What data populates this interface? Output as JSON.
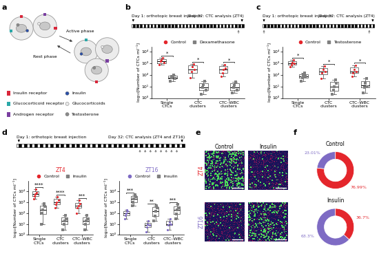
{
  "chart_data": [
    {
      "type": "diagram",
      "panel": "a",
      "phases": [
        "Active phase",
        "Rest phase"
      ],
      "legend_items": [
        {
          "name": "Insulin receptor",
          "color": "#d9263a",
          "marker": "square"
        },
        {
          "name": "Glucocorticoid receptor",
          "color": "#2aa8a8",
          "marker": "square"
        },
        {
          "name": "Androgen receptor",
          "color": "#7a3fa0",
          "marker": "square"
        },
        {
          "name": "Insulin",
          "color": "#2a4fa8",
          "marker": "circle"
        },
        {
          "name": "Glucocorticoids",
          "color": "#e8e8e8",
          "marker": "circle"
        },
        {
          "name": "Testosterone",
          "color": "#8a8a8a",
          "marker": "circle"
        }
      ]
    },
    {
      "type": "box",
      "panel": "b",
      "timeline": {
        "days": 32,
        "start": "Day 1: orthotopic breast injection",
        "end": "Day 32: CTC analysis (ZT4)",
        "treatment_days": [
          31
        ]
      },
      "categories": [
        "Single CTCs",
        "CTC clusters",
        "CTC–WBC clusters"
      ],
      "y_label": "log₁₀[Number of CTCs ml⁻¹]",
      "log": "y",
      "ylim": [
        1,
        30000
      ],
      "yticks": [
        {
          "value": 1,
          "label": "10⁰"
        },
        {
          "value": 10,
          "label": "10¹"
        },
        {
          "value": 100,
          "label": "10²"
        },
        {
          "value": 1000,
          "label": "10³"
        },
        {
          "value": 10000,
          "label": "10⁴"
        }
      ],
      "legend": "lower center",
      "series": [
        {
          "name": "Control",
          "color": "#e4262c",
          "marker": "circle",
          "boxes": [
            [
              800,
              1000,
              1500,
              2500,
              3000
            ],
            [
              60,
              150,
              300,
              700,
              900
            ],
            [
              80,
              150,
              300,
              600,
              800
            ]
          ],
          "points": [
            [
              800,
              1500,
              2000,
              3000,
              1200
            ],
            [
              60,
              200,
              500,
              900,
              300
            ],
            [
              80,
              150,
              300,
              800,
              400
            ]
          ]
        },
        {
          "name": "Dexamethasone",
          "color": "#7f7f7f",
          "marker": "square",
          "boxes": [
            [
              30,
              50,
              60,
              90,
              100
            ],
            [
              2,
              5,
              8,
              20,
              30
            ],
            [
              3,
              5,
              8,
              18,
              25
            ]
          ],
          "points": [
            [
              30,
              60,
              80,
              100,
              50
            ],
            [
              2,
              8,
              15,
              30,
              5
            ],
            [
              3,
              8,
              12,
              25,
              5
            ]
          ]
        }
      ],
      "significance": [
        "*",
        "*",
        "*"
      ]
    },
    {
      "type": "box",
      "panel": "c",
      "timeline": {
        "days": 32,
        "start": "Day 1: orthotopic breast injection",
        "end": "Day 32: CTC analysis (ZT4)",
        "treatment_days": [
          1,
          31
        ]
      },
      "categories": [
        "Single CTCs",
        "CTC clusters",
        "CTC–WBC clusters"
      ],
      "y_label": "log₁₀[Number of CTCs ml⁻¹]",
      "log": "y",
      "ylim": [
        1,
        30000
      ],
      "yticks": [
        {
          "value": 1,
          "label": "10⁰"
        },
        {
          "value": 10,
          "label": "10¹"
        },
        {
          "value": 100,
          "label": "10²"
        },
        {
          "value": 1000,
          "label": "10³"
        },
        {
          "value": 10000,
          "label": "10⁴"
        }
      ],
      "legend": "lower center",
      "series": [
        {
          "name": "Control",
          "color": "#e4262c",
          "marker": "circle",
          "boxes": [
            [
              500,
              800,
              1000,
              1500,
              2000
            ],
            [
              50,
              120,
              200,
              400,
              600
            ],
            [
              80,
              150,
              200,
              450,
              700
            ]
          ],
          "points": [
            [
              500,
              800,
              1200,
              2000,
              1000
            ],
            [
              50,
              150,
              300,
              600,
              200
            ],
            [
              80,
              150,
              300,
              700,
              200
            ]
          ]
        },
        {
          "name": "Testosterone",
          "color": "#7f7f7f",
          "marker": "square",
          "boxes": [
            [
              30,
              60,
              80,
              120,
              150
            ],
            [
              2,
              4,
              10,
              25,
              40
            ],
            [
              3,
              8,
              12,
              30,
              50
            ]
          ],
          "points": [
            [
              30,
              60,
              100,
              150,
              80
            ],
            [
              2,
              5,
              10,
              40,
              20
            ],
            [
              3,
              8,
              20,
              50,
              10
            ]
          ]
        }
      ],
      "significance": [
        "*",
        "*",
        "*"
      ]
    },
    {
      "type": "box",
      "panel": "d",
      "timeline": {
        "days": 32,
        "start": "Day 1: orthotopic breast injection",
        "end": "Day 32: CTC analysis (ZT4 and ZT16)",
        "treatment_days": [
          24,
          25,
          26,
          27,
          28,
          29,
          30,
          31
        ]
      },
      "charts": [
        {
          "title": "ZT4",
          "color": "#e4262c",
          "categories": [
            "Single CTCs",
            "CTC clusters",
            "CTC–WBC clusters"
          ],
          "y_label": "log₁₀[Number of CTCs ml⁻¹]",
          "log": "y",
          "ylim": [
            1,
            100000
          ],
          "yticks": [
            {
              "value": 1,
              "label": "10⁰"
            },
            {
              "value": 10,
              "label": "10¹"
            },
            {
              "value": 100,
              "label": "10²"
            },
            {
              "value": 1000,
              "label": "10³"
            },
            {
              "value": 10000,
              "label": "10⁴"
            }
          ],
          "legend": "lower center",
          "series": [
            {
              "name": "Control",
              "color": "#e4262c",
              "marker": "circle",
              "boxes": [
                [
                  2000,
                  4000,
                  6000,
                  10000,
                  15000
                ],
                [
                  300,
                  600,
                  1000,
                  2000,
                  3000
                ],
                [
                  100,
                  300,
                  500,
                  900,
                  1500
                ]
              ],
              "points": [
                [
                  2000,
                  4000,
                  6000,
                  15000,
                  8000
                ],
                [
                  300,
                  600,
                  1000,
                  3000,
                  1500
                ],
                [
                  100,
                  300,
                  500,
                  1500,
                  800
                ]
              ]
            },
            {
              "name": "Insulin",
              "color": "#7f7f7f",
              "marker": "square",
              "boxes": [
                [
                  10,
                  80,
                  200,
                  500,
                  800
                ],
                [
                  3,
                  10,
                  20,
                  40,
                  60
                ],
                [
                  3,
                  10,
                  20,
                  40,
                  60
                ]
              ],
              "points": [
                [
                  10,
                  100,
                  200,
                  800,
                  400
                ],
                [
                  3,
                  10,
                  20,
                  60,
                  30
                ],
                [
                  3,
                  10,
                  20,
                  60,
                  30
                ]
              ]
            }
          ],
          "significance": [
            "****",
            "****",
            "***"
          ]
        },
        {
          "title": "ZT16",
          "color": "#7e6bc4",
          "categories": [
            "Single CTCs",
            "CTC clusters",
            "CTC–WBC clusters"
          ],
          "y_label": "log₁₀[Number of CTCs ml⁻¹]",
          "log": "y",
          "ylim": [
            1,
            100000
          ],
          "yticks": [
            {
              "value": 1,
              "label": "10⁰"
            },
            {
              "value": 10,
              "label": "10¹"
            },
            {
              "value": 100,
              "label": "10²"
            },
            {
              "value": 1000,
              "label": "10³"
            },
            {
              "value": 10000,
              "label": "10⁴"
            }
          ],
          "legend": "lower center",
          "series": [
            {
              "name": "Control",
              "color": "#7e6bc4",
              "marker": "circle",
              "boxes": [
                [
                  30,
                  60,
                  100,
                  150,
                  200
                ],
                [
                  2,
                  5,
                  8,
                  12,
                  20
                ],
                [
                  3,
                  8,
                  10,
                  20,
                  30
                ]
              ],
              "points": [
                [
                  30,
                  60,
                  100,
                  200,
                  150
                ],
                [
                  2,
                  5,
                  10,
                  20,
                  8
                ],
                [
                  3,
                  8,
                  15,
                  30,
                  10
                ]
              ]
            },
            {
              "name": "Insulin",
              "color": "#7f7f7f",
              "marker": "square",
              "boxes": [
                [
                  500,
                  1000,
                  2000,
                  3500,
                  5000
                ],
                [
                  20,
                  50,
                  150,
                  350,
                  500
                ],
                [
                  30,
                  80,
                  200,
                  400,
                  600
                ]
              ],
              "points": [
                [
                  500,
                  1000,
                  2000,
                  5000,
                  3000
                ],
                [
                  20,
                  50,
                  150,
                  500,
                  300
                ],
                [
                  30,
                  80,
                  200,
                  600,
                  300
                ]
              ]
            }
          ],
          "significance": [
            "***",
            "**",
            "***"
          ]
        }
      ]
    },
    {
      "type": "image",
      "panel": "e",
      "columns": [
        "Control",
        "Insulin"
      ],
      "rows": [
        {
          "name": "ZT4",
          "color": "#e4262c"
        },
        {
          "name": "ZT16",
          "color": "#7e6bc4"
        }
      ]
    },
    {
      "type": "pie",
      "panel": "f",
      "charts": [
        {
          "title": "Control",
          "values": [
            23.01,
            76.99
          ],
          "value_labels": [
            "23.01%",
            "76.99%"
          ],
          "colors": [
            "#7e6bc4",
            "#e4262c"
          ]
        },
        {
          "title": "Insulin",
          "values": [
            63.3,
            36.7
          ],
          "value_labels": [
            "63.3%",
            "36.7%"
          ],
          "colors": [
            "#7e6bc4",
            "#e4262c"
          ]
        }
      ]
    }
  ]
}
